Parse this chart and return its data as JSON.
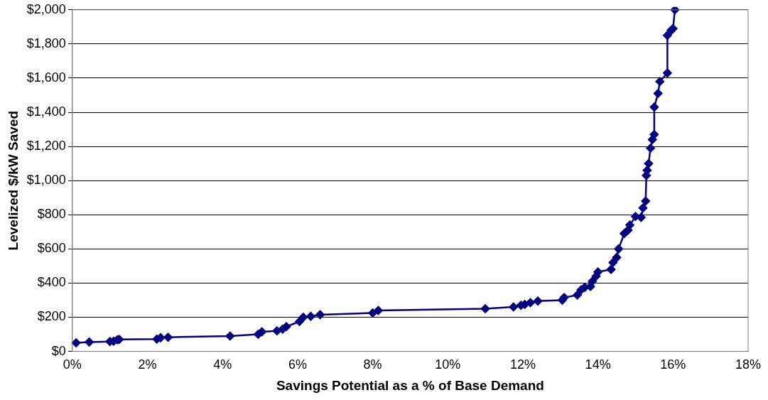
{
  "chart_data": {
    "type": "line",
    "xlabel": "Savings Potential as a % of Base Demand",
    "ylabel": "Levelized $/kW Saved",
    "xlim": [
      0,
      18
    ],
    "xticks": [
      {
        "value": 0,
        "label": "0%"
      },
      {
        "value": 2,
        "label": "2%"
      },
      {
        "value": 4,
        "label": "4%"
      },
      {
        "value": 6,
        "label": "6%"
      },
      {
        "value": 8,
        "label": "8%"
      },
      {
        "value": 10,
        "label": "10%"
      },
      {
        "value": 12,
        "label": "12%"
      },
      {
        "value": 14,
        "label": "14%"
      },
      {
        "value": 16,
        "label": "16%"
      },
      {
        "value": 18,
        "label": "18%"
      }
    ],
    "ylim": [
      0,
      2000
    ],
    "yticks": [
      {
        "value": 0,
        "label": "$0"
      },
      {
        "value": 200,
        "label": "$200"
      },
      {
        "value": 400,
        "label": "$400"
      },
      {
        "value": 600,
        "label": "$600"
      },
      {
        "value": 800,
        "label": "$800"
      },
      {
        "value": 1000,
        "label": "$1,000"
      },
      {
        "value": 1200,
        "label": "$1,200"
      },
      {
        "value": 1400,
        "label": "$1,400"
      },
      {
        "value": 1600,
        "label": "$1,600"
      },
      {
        "value": 1800,
        "label": "$1,800"
      },
      {
        "value": 2000,
        "label": "$2,000"
      }
    ],
    "grid": "y",
    "legend": false,
    "marker": "diamond",
    "line_style": "solid",
    "series": [
      {
        "color": "#000080",
        "x": [
          0.1,
          0.45,
          1.0,
          1.1,
          1.2,
          1.25,
          2.25,
          2.35,
          2.55,
          4.2,
          4.95,
          5.05,
          5.45,
          5.6,
          5.7,
          6.05,
          6.15,
          6.35,
          6.6,
          8.0,
          8.15,
          11.0,
          11.75,
          11.95,
          12.05,
          12.2,
          12.4,
          13.05,
          13.1,
          13.45,
          13.55,
          13.65,
          13.8,
          13.85,
          13.95,
          14.0,
          14.35,
          14.4,
          14.5,
          14.55,
          14.7,
          14.8,
          14.85,
          15.0,
          15.15,
          15.2,
          15.27,
          15.29,
          15.31,
          15.35,
          15.4,
          15.45,
          15.5,
          15.5,
          15.6,
          15.65,
          15.85,
          15.85,
          15.95,
          16.0,
          16.05
        ],
        "values": [
          50,
          55,
          58,
          60,
          68,
          70,
          72,
          80,
          83,
          90,
          100,
          115,
          120,
          130,
          145,
          175,
          200,
          205,
          215,
          225,
          240,
          250,
          260,
          270,
          275,
          285,
          295,
          300,
          315,
          330,
          360,
          375,
          380,
          410,
          440,
          465,
          480,
          520,
          550,
          600,
          690,
          710,
          740,
          790,
          785,
          840,
          880,
          1030,
          1060,
          1100,
          1190,
          1240,
          1270,
          1430,
          1510,
          1580,
          1630,
          1850,
          1880,
          1890,
          2000
        ]
      }
    ]
  }
}
